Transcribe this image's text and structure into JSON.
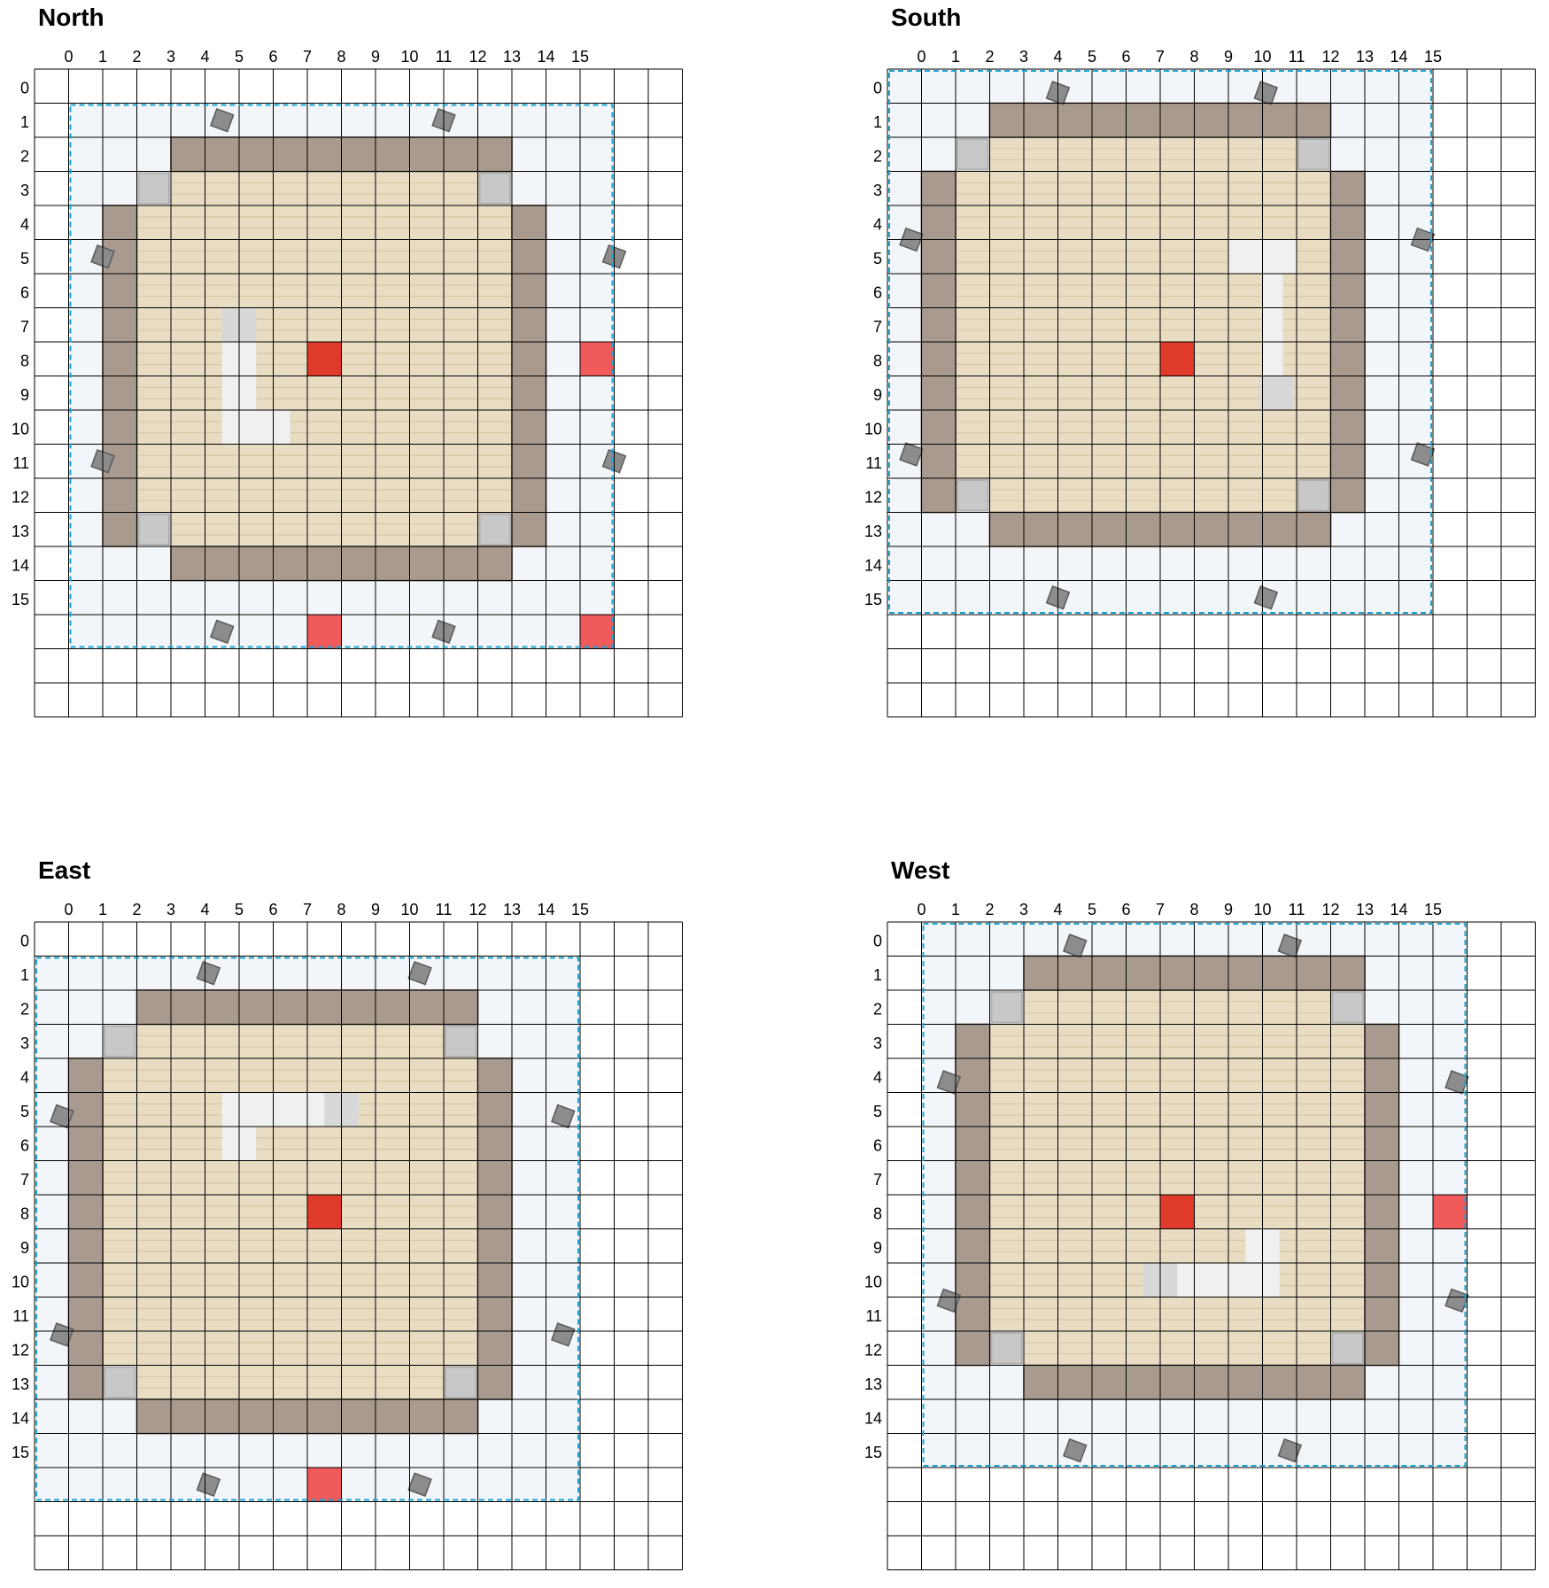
{
  "col_headers": [
    "0",
    "1",
    "2",
    "3",
    "4",
    "5",
    "6",
    "7",
    "8",
    "9",
    "10",
    "11",
    "12",
    "13",
    "14",
    "15"
  ],
  "row_headers": [
    "0",
    "1",
    "2",
    "3",
    "4",
    "5",
    "6",
    "7",
    "8",
    "9",
    "10",
    "11",
    "12",
    "13",
    "14",
    "15"
  ],
  "colors": {
    "grid_line": "#000000",
    "chunk_fill": "#f2f6fa",
    "chunk_border": "#1aa3d1",
    "floor": "#e8dcc2",
    "floor_line": "#d4c6a6",
    "wall": "#a89a8e",
    "wall_line": "#8a7d72",
    "stone_corner": "#c8c8c8",
    "lantern": "#8c8c8c",
    "white_marker": "#f0f0f0",
    "red_center": "#e03a2a",
    "red_marker": "#f05a5a"
  },
  "panels": [
    {
      "title": "North",
      "chunk": [
        1,
        1,
        16,
        16
      ],
      "walls": [
        [
          4,
          2,
          10,
          1
        ],
        [
          4,
          14,
          10,
          1
        ],
        [
          2,
          4,
          1,
          10
        ],
        [
          14,
          4,
          1,
          10
        ]
      ],
      "floor": [
        [
          4,
          3,
          10,
          11
        ],
        [
          3,
          4,
          11,
          9
        ]
      ],
      "stone_corners": [
        [
          3,
          3
        ],
        [
          13,
          3
        ],
        [
          3,
          13
        ],
        [
          13,
          13
        ]
      ],
      "lanterns": [
        [
          5,
          1
        ],
        [
          11.5,
          1
        ],
        [
          1.5,
          5
        ],
        [
          16.5,
          5
        ],
        [
          1.5,
          11
        ],
        [
          16.5,
          11
        ],
        [
          5,
          16
        ],
        [
          11.5,
          16
        ]
      ],
      "white_marker": [
        [
          5.5,
          8,
          1,
          3
        ],
        [
          5.5,
          10,
          2,
          1
        ]
      ],
      "white_stone": [
        [
          5.5,
          7,
          1,
          1
        ]
      ],
      "red_center": [
        8,
        8
      ],
      "red_markers": [
        [
          16,
          8
        ],
        [
          8,
          16
        ],
        [
          16,
          16
        ]
      ]
    },
    {
      "title": "South",
      "chunk": [
        0,
        0,
        16,
        16
      ],
      "walls": [
        [
          3,
          1,
          10,
          1
        ],
        [
          3,
          13,
          10,
          1
        ],
        [
          1,
          3,
          1,
          10
        ],
        [
          13,
          3,
          1,
          10
        ]
      ],
      "floor": [
        [
          3,
          2,
          10,
          11
        ],
        [
          2,
          3,
          11,
          9
        ]
      ],
      "stone_corners": [
        [
          2,
          2
        ],
        [
          12,
          2
        ],
        [
          2,
          12
        ],
        [
          12,
          12
        ]
      ],
      "lanterns": [
        [
          4.5,
          0.2
        ],
        [
          10.6,
          0.2
        ],
        [
          0.2,
          4.5
        ],
        [
          15.2,
          4.5
        ],
        [
          0.2,
          10.8
        ],
        [
          15.2,
          10.8
        ],
        [
          4.5,
          15
        ],
        [
          10.6,
          15
        ]
      ],
      "white_marker": [
        [
          10,
          5,
          2,
          1
        ],
        [
          11,
          6,
          0.6,
          3
        ]
      ],
      "white_stone": [
        [
          10.9,
          9,
          1,
          1
        ]
      ],
      "red_center": [
        8,
        8
      ],
      "red_markers": []
    },
    {
      "title": "East",
      "chunk": [
        0,
        1,
        16,
        16
      ],
      "walls": [
        [
          3,
          2,
          10,
          1
        ],
        [
          3,
          14,
          10,
          1
        ],
        [
          1,
          4,
          1,
          10
        ],
        [
          13,
          4,
          1,
          10
        ]
      ],
      "floor": [
        [
          3,
          3,
          10,
          11
        ],
        [
          2,
          4,
          11,
          9
        ]
      ],
      "stone_corners": [
        [
          2,
          3
        ],
        [
          12,
          3
        ],
        [
          2,
          13
        ],
        [
          12,
          13
        ]
      ],
      "lanterns": [
        [
          4.6,
          1
        ],
        [
          10.8,
          1
        ],
        [
          0.3,
          5.2
        ],
        [
          15,
          5.2
        ],
        [
          0.3,
          11.6
        ],
        [
          15,
          11.6
        ],
        [
          4.6,
          16
        ],
        [
          10.8,
          16
        ]
      ],
      "white_marker": [
        [
          5.5,
          5,
          4,
          1
        ],
        [
          5.5,
          6,
          1,
          1
        ]
      ],
      "white_stone": [
        [
          8.5,
          5,
          1,
          1
        ]
      ],
      "red_center": [
        8,
        8
      ],
      "red_markers": [
        [
          8,
          16
        ]
      ]
    },
    {
      "title": "West",
      "chunk": [
        1,
        0,
        16,
        16
      ],
      "walls": [
        [
          4,
          1,
          10,
          1
        ],
        [
          4,
          13,
          10,
          1
        ],
        [
          2,
          3,
          1,
          10
        ],
        [
          14,
          3,
          1,
          10
        ]
      ],
      "floor": [
        [
          4,
          2,
          10,
          11
        ],
        [
          3,
          3,
          11,
          9
        ]
      ],
      "stone_corners": [
        [
          3,
          2
        ],
        [
          13,
          2
        ],
        [
          3,
          12
        ],
        [
          13,
          12
        ]
      ],
      "lanterns": [
        [
          5,
          0.2
        ],
        [
          11.3,
          0.2
        ],
        [
          1.3,
          4.2
        ],
        [
          16.2,
          4.2
        ],
        [
          1.3,
          10.6
        ],
        [
          16.2,
          10.6
        ],
        [
          5,
          15
        ],
        [
          11.3,
          15
        ]
      ],
      "white_marker": [
        [
          7.5,
          10,
          4,
          1
        ],
        [
          10.5,
          9,
          1,
          1
        ]
      ],
      "white_stone": [
        [
          7.5,
          10,
          1,
          1
        ]
      ],
      "red_center": [
        8,
        8
      ],
      "red_markers": [
        [
          16,
          8
        ]
      ]
    }
  ]
}
